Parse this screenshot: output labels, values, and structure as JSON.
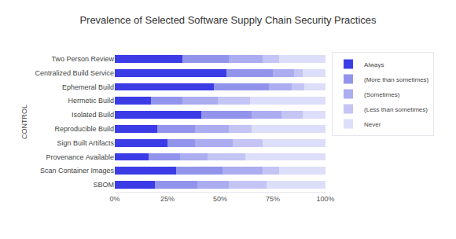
{
  "chart_data": {
    "type": "bar",
    "title": "Prevalence of Selected Software Supply Chain Security Practices",
    "y_label": "CONTROL",
    "orientation": "horizontal",
    "stacked": true,
    "grid": false,
    "legend": "right",
    "categories": [
      "Two Person Review",
      "Centralized Build Service",
      "Ephemeral Build",
      "Hermetic Build",
      "Isolated Build",
      "Reproducible Build",
      "Sign Built Artifacts",
      "Provenance Available",
      "Scan Container Images",
      "SBOM"
    ],
    "series": [
      {
        "name": "Always",
        "color": "#3c3ce6",
        "values": [
          32,
          53,
          47,
          17,
          41,
          20,
          25,
          16,
          29,
          19
        ]
      },
      {
        "name": "(More than sometimes)",
        "color": "#9294ec",
        "values": [
          22,
          22,
          26,
          15,
          24,
          18,
          13,
          15,
          22,
          20
        ]
      },
      {
        "name": "(Sometimes)",
        "color": "#abadf0",
        "values": [
          16,
          10,
          11,
          17,
          14,
          16,
          18,
          13,
          19,
          15
        ]
      },
      {
        "name": "(Less than sometimes)",
        "color": "#c4c5f4",
        "values": [
          8,
          4,
          6,
          15,
          10,
          11,
          14,
          18,
          8,
          18
        ]
      },
      {
        "name": "Never",
        "color": "#dddef9",
        "values": [
          22,
          11,
          10,
          36,
          11,
          35,
          30,
          38,
          22,
          28
        ]
      }
    ],
    "xlim": [
      0,
      100
    ],
    "xticks": [
      {
        "value": 0,
        "label": "0%"
      },
      {
        "value": 25,
        "label": "25%"
      },
      {
        "value": 50,
        "label": "50%"
      },
      {
        "value": 75,
        "label": "75%"
      },
      {
        "value": 100,
        "label": "100%"
      }
    ]
  }
}
